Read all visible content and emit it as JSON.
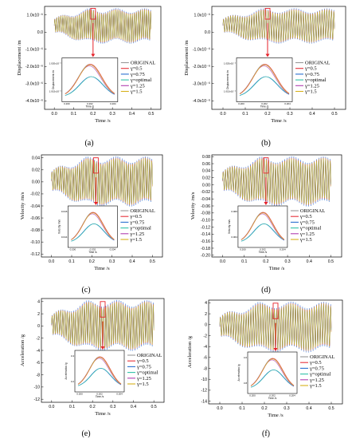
{
  "colors": {
    "ORIGINAL": "#999999",
    "g05": "#e7323a",
    "g075": "#2a6fd0",
    "gopt": "#32c2a8",
    "g125": "#b13fb0",
    "g15": "#d7b11d",
    "highlight": "#e6222a"
  },
  "legend": [
    "ORIGINAL",
    "γ=0.5",
    "γ=0.75",
    "γ=optimal",
    "γ=1.25",
    "γ=1.5"
  ],
  "chart_data": [
    {
      "id": "a",
      "label": "(a)",
      "type": "line",
      "ylabel": "Displacement /m",
      "xlabel": "Time /s",
      "xlim": [
        -0.05,
        0.55
      ],
      "ylim": [
        -4e-06,
        1.2e-06
      ],
      "xticks": [
        "0.0",
        "0.1",
        "0.2",
        "0.3",
        "0.4",
        "0.5"
      ],
      "yticks": [
        "1.0x10⁻⁶",
        "0.0",
        "-1.0x10⁻⁶",
        "-2.0x10⁻⁶",
        "-3.0x10⁻⁶",
        "-4.0x10⁻⁶"
      ],
      "amplitude": 7.5e-07,
      "highlight_x": 0.2,
      "inset": {
        "ylabel": "Displacement /m",
        "xlabel": "Time /s",
        "yticks": [
          "1.020x10⁻⁶",
          "1.015x10⁻⁶"
        ],
        "xticks": [
          "0.200",
          "0.202",
          "0.204"
        ]
      }
    },
    {
      "id": "b",
      "label": "(b)",
      "type": "line",
      "ylabel": "Displacement /m",
      "xlabel": "Time /s",
      "xlim": [
        -0.05,
        0.55
      ],
      "ylim": [
        -4e-06,
        1.2e-06
      ],
      "xticks": [
        "0.0",
        "0.1",
        "0.2",
        "0.3",
        "0.4",
        "0.5"
      ],
      "yticks": [
        "1.0x10⁻⁶",
        "0.0",
        "-1.0x10⁻⁶",
        "-2.0x10⁻⁶",
        "-3.0x10⁻⁶",
        "-4.0x10⁻⁶"
      ],
      "amplitude": 7.5e-07,
      "highlight_x": 0.2,
      "inset": {
        "ylabel": "Displacement /m",
        "xlabel": "Time /s",
        "yticks": [
          "1.020x10⁻⁶",
          "1.015x10⁻⁶"
        ],
        "xticks": [
          "0.200",
          "0.202",
          "0.204"
        ]
      }
    },
    {
      "id": "c",
      "label": "(c)",
      "type": "line",
      "ylabel": "Velocity /m/s",
      "xlabel": "Time /s",
      "xlim": [
        -0.05,
        0.55
      ],
      "ylim": [
        -0.12,
        0.05
      ],
      "xticks": [
        "0.0",
        "0.1",
        "0.2",
        "0.3",
        "0.4",
        "0.5"
      ],
      "yticks": [
        "0.04",
        "0.02",
        "0.00",
        "-0.02",
        "-0.04",
        "-0.06",
        "-0.08",
        "-0.10",
        "-0.12"
      ],
      "amplitude": 0.04,
      "highlight_x": 0.22,
      "inset": {
        "ylabel": "Velocity /m/s",
        "xlabel": "Time /s",
        "yticks": [
          "0.046",
          "0.044"
        ],
        "xticks": [
          "0.200",
          "0.202",
          "0.204"
        ]
      }
    },
    {
      "id": "d",
      "label": "(d)",
      "type": "line",
      "ylabel": "Velocity /m/s",
      "xlabel": "Time /s",
      "xlim": [
        -0.05,
        0.55
      ],
      "ylim": [
        -0.2,
        0.08
      ],
      "xticks": [
        "0.0",
        "0.1",
        "0.2",
        "0.3",
        "0.4",
        "0.5"
      ],
      "yticks": [
        "0.08",
        "0.06",
        "0.04",
        "0.02",
        "0.00",
        "-0.02",
        "-0.04",
        "-0.06",
        "-0.08",
        "-0.10",
        "-0.12",
        "-0.14",
        "-0.16",
        "-0.18",
        "-0.20"
      ],
      "amplitude": 0.06,
      "highlight_x": 0.2,
      "inset": {
        "ylabel": "Velocity /m/s",
        "xlabel": "Time /s",
        "yticks": [
          "0.066",
          "0.064"
        ],
        "xticks": [
          "0.200",
          "0.202",
          "0.204"
        ]
      }
    },
    {
      "id": "e",
      "label": "(e)",
      "type": "line",
      "ylabel": "Acceleration /g",
      "xlabel": "Time /s",
      "xlim": [
        -0.05,
        0.55
      ],
      "ylim": [
        -12,
        4
      ],
      "xticks": [
        "0.0",
        "0.1",
        "0.2",
        "0.3",
        "0.4",
        "0.5"
      ],
      "yticks": [
        "4",
        "2",
        "0",
        "-2",
        "-4",
        "-6",
        "-8",
        "-10",
        "-12"
      ],
      "amplitude": 3.2,
      "highlight_x": 0.25,
      "inset": {
        "ylabel": "Acceleration /g",
        "xlabel": "Time /s",
        "yticks": [
          "3.4",
          "3.2"
        ],
        "xticks": [
          "0.200",
          "0.202",
          "0.204"
        ]
      }
    },
    {
      "id": "f",
      "label": "(f)",
      "type": "line",
      "ylabel": "Acceleration /g",
      "xlabel": "Time /s",
      "xlim": [
        -0.05,
        0.55
      ],
      "ylim": [
        -14,
        4.5
      ],
      "xticks": [
        "0.0",
        "0.1",
        "0.2",
        "0.3",
        "0.4",
        "0.5"
      ],
      "yticks": [
        "4",
        "2",
        "0",
        "-2",
        "-4",
        "-6",
        "-8",
        "-10",
        "-12",
        "-14"
      ],
      "amplitude": 3.6,
      "highlight_x": 0.25,
      "inset": {
        "ylabel": "Acceleration /g",
        "xlabel": "Time /s",
        "yticks": [
          "4.0",
          "3.8"
        ],
        "xticks": [
          "0.200",
          "0.202",
          "0.204"
        ]
      }
    }
  ]
}
